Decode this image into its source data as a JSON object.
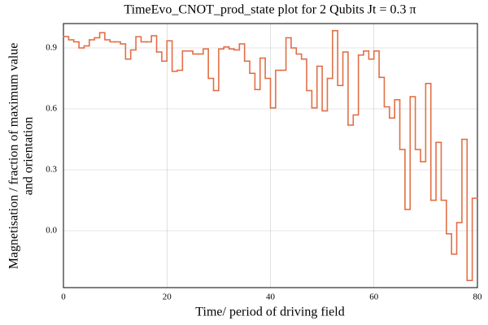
{
  "chart_data": {
    "type": "step",
    "title": "TimeEvo_CNOT_prod_state plot for 2 Qubits Jt = 0.3 π",
    "xlabel": "Time/ period of driving field",
    "ylabel": [
      "Magnetisation / fraction of maximum value",
      "and orientation"
    ],
    "x": [
      0,
      1,
      2,
      3,
      4,
      5,
      6,
      7,
      8,
      9,
      10,
      11,
      12,
      13,
      14,
      15,
      16,
      17,
      18,
      19,
      20,
      21,
      22,
      23,
      24,
      25,
      26,
      27,
      28,
      29,
      30,
      31,
      32,
      33,
      34,
      35,
      36,
      37,
      38,
      39,
      40,
      41,
      42,
      43,
      44,
      45,
      46,
      47,
      48,
      49,
      50,
      51,
      52,
      53,
      54,
      55,
      56,
      57,
      58,
      59,
      60,
      61,
      62,
      63,
      64,
      65,
      66,
      67,
      68,
      69,
      70,
      71,
      72,
      73,
      74,
      75,
      76,
      77,
      78,
      79
    ],
    "series": [
      {
        "color": "#e26f46",
        "values": [
          0.956,
          0.94,
          0.93,
          0.9,
          0.91,
          0.94,
          0.95,
          0.975,
          0.94,
          0.93,
          0.93,
          0.92,
          0.845,
          0.89,
          0.955,
          0.93,
          0.93,
          0.96,
          0.88,
          0.835,
          0.935,
          0.785,
          0.79,
          0.885,
          0.885,
          0.87,
          0.87,
          0.895,
          0.75,
          0.69,
          0.895,
          0.905,
          0.895,
          0.89,
          0.92,
          0.835,
          0.775,
          0.695,
          0.85,
          0.75,
          0.605,
          0.79,
          0.79,
          0.95,
          0.9,
          0.87,
          0.845,
          0.69,
          0.605,
          0.81,
          0.59,
          0.75,
          0.985,
          0.715,
          0.88,
          0.52,
          0.57,
          0.865,
          0.885,
          0.845,
          0.885,
          0.755,
          0.61,
          0.555,
          0.645,
          0.4,
          0.105,
          0.66,
          0.4,
          0.34,
          0.725,
          0.15,
          0.435,
          0.15,
          -0.015,
          -0.115,
          0.04,
          0.45,
          -0.245,
          0.16
        ]
      }
    ],
    "xlim": [
      0,
      80
    ],
    "xticks": [
      0,
      20,
      40,
      60,
      80
    ],
    "ylim": [
      -0.28,
      1.02
    ],
    "yticks": [
      {
        "value": 0,
        "label": "0.0"
      },
      0.3,
      0.6,
      0.9
    ],
    "grid": true
  }
}
